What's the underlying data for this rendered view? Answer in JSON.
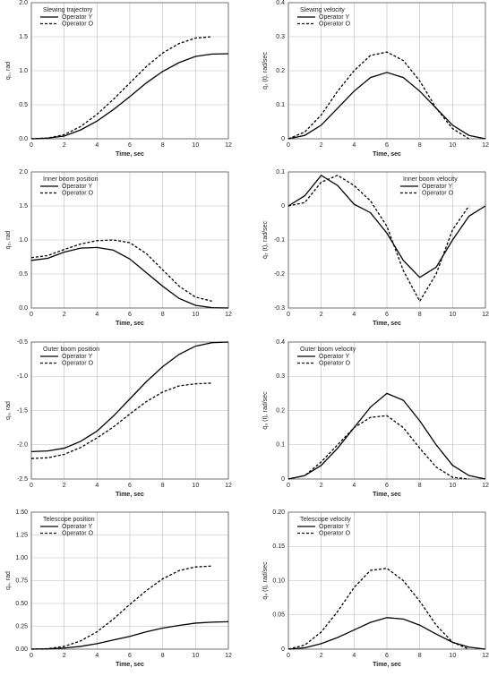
{
  "chart_data": [
    {
      "type": "line",
      "title": "Slewing trajectory",
      "ylabel": "q₁, rad",
      "xlabel": "Time, sec",
      "legend": "upper left",
      "grid": true,
      "x": [
        0,
        1,
        2,
        3,
        4,
        5,
        6,
        7,
        8,
        9,
        10,
        11,
        12
      ],
      "xlim": [
        0,
        12
      ],
      "xticks": [
        0,
        2,
        4,
        6,
        8,
        10,
        12
      ],
      "ylim": [
        0,
        2
      ],
      "yticks": [
        {
          "value": 0,
          "label": "0.0"
        },
        0.5,
        {
          "value": 1,
          "label": "1.0"
        },
        1.5,
        {
          "value": 2,
          "label": "2.0"
        }
      ],
      "series": [
        {
          "name": "Operator Y",
          "color": "#000000",
          "linestyle": "solid",
          "values": [
            0,
            0.01,
            0.04,
            0.13,
            0.26,
            0.43,
            0.62,
            0.82,
            0.99,
            1.12,
            1.21,
            1.245,
            1.25
          ]
        },
        {
          "name": "Operator O",
          "color": "#000000",
          "linestyle": "dashed",
          "values": [
            0,
            0.01,
            0.06,
            0.18,
            0.36,
            0.58,
            0.82,
            1.06,
            1.26,
            1.4,
            1.48,
            1.5,
            null
          ]
        }
      ]
    },
    {
      "type": "line",
      "title": "Slewing velocity",
      "ylabel": "q̇₁ (t), rad/sec",
      "xlabel": "Time, sec",
      "legend": "upper left",
      "grid": true,
      "x": [
        0,
        1,
        2,
        3,
        4,
        5,
        6,
        7,
        8,
        9,
        10,
        11,
        12
      ],
      "xlim": [
        0,
        12
      ],
      "xticks": [
        0,
        2,
        4,
        6,
        8,
        10,
        12
      ],
      "ylim": [
        0,
        0.4
      ],
      "yticks": [
        0,
        0.1,
        0.2,
        0.3,
        0.4
      ],
      "series": [
        {
          "name": "Operator Y",
          "color": "#000000",
          "linestyle": "solid",
          "values": [
            0,
            0.01,
            0.04,
            0.09,
            0.14,
            0.18,
            0.195,
            0.18,
            0.14,
            0.09,
            0.04,
            0.01,
            0
          ]
        },
        {
          "name": "Operator O",
          "color": "#000000",
          "linestyle": "dashed",
          "values": [
            0,
            0.02,
            0.07,
            0.14,
            0.2,
            0.245,
            0.255,
            0.23,
            0.17,
            0.09,
            0.03,
            0,
            null
          ]
        }
      ]
    },
    {
      "type": "line",
      "title": "Inner boom position",
      "ylabel": "q₂, rad",
      "xlabel": "Time, sec",
      "legend": "upper left",
      "grid": true,
      "x": [
        0,
        1,
        2,
        3,
        4,
        5,
        6,
        7,
        8,
        9,
        10,
        11,
        12
      ],
      "xlim": [
        0,
        12
      ],
      "xticks": [
        0,
        2,
        4,
        6,
        8,
        10,
        12
      ],
      "ylim": [
        0,
        2
      ],
      "yticks": [
        {
          "value": 0,
          "label": "0.0"
        },
        0.5,
        {
          "value": 1,
          "label": "1.0"
        },
        1.5,
        {
          "value": 2,
          "label": "2.0"
        }
      ],
      "series": [
        {
          "name": "Operator Y",
          "color": "#000000",
          "linestyle": "solid",
          "values": [
            0.7,
            0.73,
            0.82,
            0.88,
            0.89,
            0.85,
            0.72,
            0.52,
            0.32,
            0.14,
            0.04,
            0.005,
            0
          ]
        },
        {
          "name": "Operator O",
          "color": "#000000",
          "linestyle": "dashed",
          "values": [
            0.74,
            0.77,
            0.86,
            0.94,
            0.99,
            1.0,
            0.96,
            0.8,
            0.56,
            0.32,
            0.16,
            0.1,
            null
          ]
        }
      ]
    },
    {
      "type": "line",
      "title": "Inner boom velocity",
      "ylabel": "q̇₂ (t), rad/sec",
      "xlabel": "Time, sec",
      "legend": "upper right",
      "grid": true,
      "x": [
        0,
        1,
        2,
        3,
        4,
        5,
        6,
        7,
        8,
        9,
        10,
        11,
        12
      ],
      "xlim": [
        0,
        12
      ],
      "xticks": [
        0,
        2,
        4,
        6,
        8,
        10,
        12
      ],
      "ylim": [
        -0.3,
        0.1
      ],
      "yticks": [
        -0.3,
        -0.2,
        -0.1,
        0,
        0.1
      ],
      "series": [
        {
          "name": "Operator Y",
          "color": "#000000",
          "linestyle": "solid",
          "values": [
            0,
            0.03,
            0.09,
            0.06,
            0.005,
            -0.02,
            -0.08,
            -0.16,
            -0.21,
            -0.18,
            -0.1,
            -0.03,
            0
          ]
        },
        {
          "name": "Operator O",
          "color": "#000000",
          "linestyle": "dashed",
          "values": [
            0,
            0.01,
            0.07,
            0.09,
            0.06,
            0.015,
            -0.06,
            -0.19,
            -0.28,
            -0.2,
            -0.07,
            0,
            null
          ]
        }
      ]
    },
    {
      "type": "line",
      "title": "Outer boom position",
      "ylabel": "q₃, rad",
      "xlabel": "Time, sec",
      "legend": "upper left",
      "grid": true,
      "x": [
        0,
        1,
        2,
        3,
        4,
        5,
        6,
        7,
        8,
        9,
        10,
        11,
        12
      ],
      "xlim": [
        0,
        12
      ],
      "xticks": [
        0,
        2,
        4,
        6,
        8,
        10,
        12
      ],
      "ylim": [
        -2.5,
        -0.5
      ],
      "yticks": [
        -2.5,
        {
          "value": -2,
          "label": "-2.0"
        },
        -1.5,
        {
          "value": -1,
          "label": "-1.0"
        },
        -0.5
      ],
      "series": [
        {
          "name": "Operator Y",
          "color": "#000000",
          "linestyle": "solid",
          "values": [
            -2.1,
            -2.09,
            -2.05,
            -1.95,
            -1.8,
            -1.58,
            -1.33,
            -1.08,
            -0.86,
            -0.68,
            -0.56,
            -0.51,
            -0.5
          ]
        },
        {
          "name": "Operator O",
          "color": "#000000",
          "linestyle": "dashed",
          "values": [
            -2.2,
            -2.19,
            -2.14,
            -2.04,
            -1.9,
            -1.74,
            -1.55,
            -1.37,
            -1.23,
            -1.14,
            -1.11,
            -1.1,
            null
          ]
        }
      ]
    },
    {
      "type": "line",
      "title": "Outer boom velocity",
      "ylabel": "q̇₃ (t), rad/sec",
      "xlabel": "Time, sec",
      "legend": "upper left",
      "grid": true,
      "x": [
        0,
        1,
        2,
        3,
        4,
        5,
        6,
        7,
        8,
        9,
        10,
        11,
        12
      ],
      "xlim": [
        0,
        12
      ],
      "xticks": [
        0,
        2,
        4,
        6,
        8,
        10,
        12
      ],
      "ylim": [
        0,
        0.4
      ],
      "yticks": [
        0,
        0.1,
        0.2,
        0.3,
        0.4
      ],
      "series": [
        {
          "name": "Operator Y",
          "color": "#000000",
          "linestyle": "solid",
          "values": [
            0,
            0.01,
            0.04,
            0.09,
            0.15,
            0.21,
            0.25,
            0.23,
            0.17,
            0.1,
            0.04,
            0.01,
            0
          ]
        },
        {
          "name": "Operator O",
          "color": "#000000",
          "linestyle": "dashed",
          "values": [
            0,
            0.01,
            0.05,
            0.1,
            0.15,
            0.18,
            0.185,
            0.15,
            0.09,
            0.035,
            0.005,
            0,
            null
          ]
        }
      ]
    },
    {
      "type": "line",
      "title": "Telescope position",
      "ylabel": "q₄, rad",
      "xlabel": "Time, sec",
      "legend": "upper left",
      "grid": true,
      "x": [
        0,
        1,
        2,
        3,
        4,
        5,
        6,
        7,
        8,
        9,
        10,
        11,
        12
      ],
      "xlim": [
        0,
        12
      ],
      "xticks": [
        0,
        2,
        4,
        6,
        8,
        10,
        12
      ],
      "ylim": [
        0,
        1.5
      ],
      "yticks": [
        {
          "value": 0,
          "label": "0.00"
        },
        0.25,
        {
          "value": 0.5,
          "label": "0.50"
        },
        0.75,
        {
          "value": 1,
          "label": "1.00"
        },
        1.25,
        {
          "value": 1.5,
          "label": "1.50"
        }
      ],
      "series": [
        {
          "name": "Operator Y",
          "color": "#000000",
          "linestyle": "solid",
          "values": [
            0,
            0.003,
            0.012,
            0.03,
            0.06,
            0.1,
            0.14,
            0.19,
            0.23,
            0.26,
            0.285,
            0.295,
            0.3
          ]
        },
        {
          "name": "Operator O",
          "color": "#000000",
          "linestyle": "dashed",
          "values": [
            0,
            0.005,
            0.03,
            0.09,
            0.19,
            0.33,
            0.49,
            0.64,
            0.77,
            0.86,
            0.9,
            0.91,
            null
          ]
        }
      ]
    },
    {
      "type": "line",
      "title": "Telescope velocity",
      "ylabel": "q̇₄ (t), rad/sec",
      "xlabel": "Time, sec",
      "legend": "upper left",
      "grid": true,
      "x": [
        0,
        1,
        2,
        3,
        4,
        5,
        6,
        7,
        8,
        9,
        10,
        11,
        12
      ],
      "xlim": [
        0,
        12
      ],
      "xticks": [
        0,
        2,
        4,
        6,
        8,
        10,
        12
      ],
      "ylim": [
        0,
        0.2
      ],
      "yticks": [
        0,
        0.05,
        {
          "value": 0.1,
          "label": "0.10"
        },
        0.15,
        {
          "value": 0.2,
          "label": "0.20"
        }
      ],
      "series": [
        {
          "name": "Operator Y",
          "color": "#000000",
          "linestyle": "solid",
          "values": [
            0,
            0.002,
            0.008,
            0.017,
            0.028,
            0.039,
            0.046,
            0.044,
            0.035,
            0.022,
            0.01,
            0.003,
            0
          ]
        },
        {
          "name": "Operator O",
          "color": "#000000",
          "linestyle": "dashed",
          "values": [
            0,
            0.006,
            0.025,
            0.055,
            0.09,
            0.115,
            0.118,
            0.1,
            0.07,
            0.035,
            0.01,
            0,
            null
          ]
        }
      ]
    }
  ]
}
